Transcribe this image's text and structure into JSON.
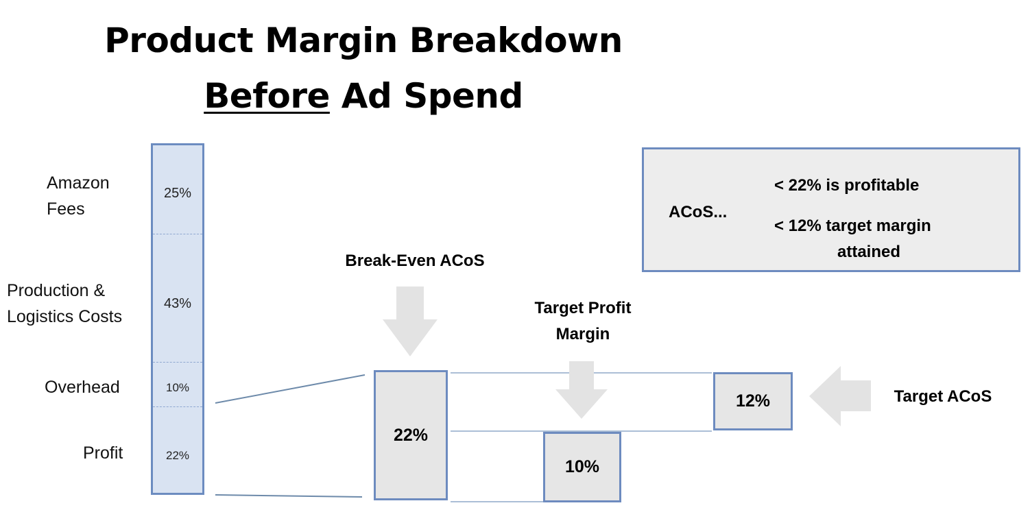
{
  "title": {
    "line1": "Product Margin Breakdown",
    "line2_underlined": "Before",
    "line2_rest": " Ad Spend"
  },
  "cost_stack": {
    "segments": [
      {
        "label_lines": [
          "Amazon",
          "Fees"
        ],
        "value": "25%"
      },
      {
        "label_lines": [
          "Production &",
          "Logistics Costs"
        ],
        "value": "43%"
      },
      {
        "label_lines": [
          "Overhead"
        ],
        "value": "10%"
      },
      {
        "label_lines": [
          "Profit"
        ],
        "value": "22%"
      }
    ]
  },
  "break_even": {
    "label": "Break-Even ACoS",
    "value": "22%"
  },
  "target_profit": {
    "label_lines": [
      "Target Profit",
      "Margin"
    ],
    "value": "10%"
  },
  "target_acos": {
    "label": "Target ACoS",
    "value": "12%"
  },
  "legend": {
    "prefix": "ACoS...",
    "line1": "< 22% is profitable",
    "line2": "< 12% target margin",
    "line3": "attained"
  },
  "colors": {
    "bar_fill": "#d9e3f2",
    "border_blue": "#6d8bbf",
    "box_fill": "#e6e6e6",
    "arrow_gray": "#e3e3e3"
  },
  "icons": [
    "down-arrow-icon",
    "down-arrow-icon",
    "left-arrow-icon"
  ]
}
